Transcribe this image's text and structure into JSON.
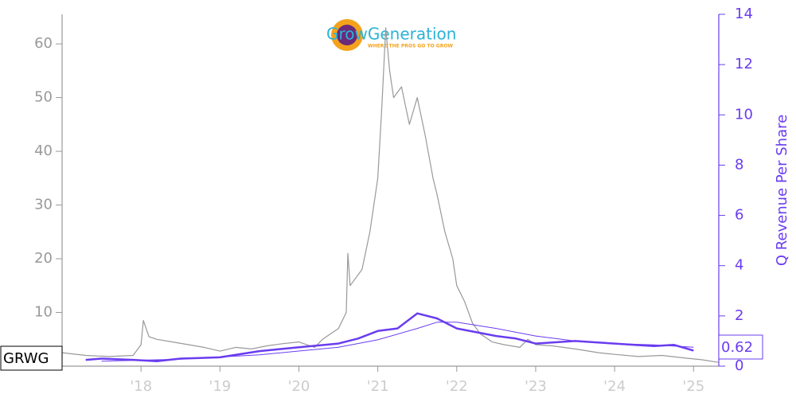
{
  "chart_data": {
    "type": "line",
    "ticker": "GRWG",
    "logo_text": "GrowGeneration",
    "logo_tagline": "WHERE THE PROS GO TO GROW",
    "y2_label": "Q Revenue Per Share",
    "xlim": [
      2017.0,
      2025.32
    ],
    "xticks": [
      {
        "value": 2018,
        "label": "'18"
      },
      {
        "value": 2019,
        "label": "'19"
      },
      {
        "value": 2020,
        "label": "'20"
      },
      {
        "value": 2021,
        "label": "'21"
      },
      {
        "value": 2022,
        "label": "'22"
      },
      {
        "value": 2023,
        "label": "'23"
      },
      {
        "value": 2024,
        "label": "'24"
      },
      {
        "value": 2025,
        "label": "'25"
      }
    ],
    "ylim": [
      0,
      65.5
    ],
    "yticks": [
      0,
      10,
      20,
      30,
      40,
      50,
      60
    ],
    "y2lim": [
      0,
      14
    ],
    "y2ticks": [
      0,
      2,
      4,
      6,
      8,
      10,
      12,
      14
    ],
    "series": [
      {
        "color": "#999999",
        "axis": "y",
        "x": [
          2017.0,
          2017.3,
          2017.6,
          2017.9,
          2018.0,
          2018.03,
          2018.1,
          2018.2,
          2018.4,
          2018.6,
          2018.8,
          2019.0,
          2019.2,
          2019.4,
          2019.6,
          2019.8,
          2020.0,
          2020.2,
          2020.3,
          2020.4,
          2020.5,
          2020.6,
          2020.62,
          2020.65,
          2020.8,
          2020.9,
          2021.0,
          2021.05,
          2021.1,
          2021.15,
          2021.2,
          2021.3,
          2021.4,
          2021.5,
          2021.6,
          2021.7,
          2021.75,
          2021.85,
          2021.95,
          2022.0,
          2022.1,
          2022.2,
          2022.3,
          2022.45,
          2022.6,
          2022.8,
          2022.9,
          2023.0,
          2023.2,
          2023.5,
          2023.8,
          2024.0,
          2024.3,
          2024.6,
          2024.9,
          2025.1,
          2025.32
        ],
        "values": [
          2.5,
          2.0,
          1.8,
          2.0,
          4,
          8.5,
          5.5,
          5,
          4.5,
          4,
          3.5,
          2.8,
          3.5,
          3.2,
          3.8,
          4.2,
          4.5,
          3.5,
          5,
          6,
          7,
          10,
          21,
          15,
          18,
          25,
          35,
          48,
          63,
          55,
          50,
          52,
          45,
          50,
          43,
          35,
          32,
          25,
          20,
          15,
          12,
          8,
          6,
          4.5,
          4,
          3.5,
          5,
          4,
          3.8,
          3.2,
          2.5,
          2.2,
          1.8,
          2.0,
          1.5,
          1.2,
          0.7
        ]
      },
      {
        "color": "#6a3cf0",
        "axis": "y2",
        "x": [
          2017.3,
          2017.5,
          2017.9,
          2018.2,
          2018.5,
          2019.0,
          2019.5,
          2020.0,
          2020.5,
          2020.75,
          2021.0,
          2021.25,
          2021.5,
          2021.75,
          2022.0,
          2022.25,
          2022.5,
          2022.75,
          2023.0,
          2023.25,
          2023.5,
          2023.75,
          2024.0,
          2024.25,
          2024.5,
          2024.75,
          2025.0
        ],
        "values": [
          0.25,
          0.3,
          0.25,
          0.2,
          0.3,
          0.35,
          0.6,
          0.75,
          0.9,
          1.1,
          1.4,
          1.5,
          2.1,
          1.9,
          1.5,
          1.35,
          1.2,
          1.1,
          0.9,
          0.95,
          1.0,
          0.95,
          0.9,
          0.85,
          0.8,
          0.85,
          0.62
        ]
      },
      {
        "color": "#6a3cf0",
        "axis": "y2",
        "x": [
          2017.5,
          2018.5,
          2019.5,
          2020.5,
          2021.0,
          2021.5,
          2021.75,
          2022.0,
          2022.5,
          2023.0,
          2023.5,
          2024.0,
          2024.5,
          2025.0
        ],
        "values": [
          0.2,
          0.28,
          0.45,
          0.75,
          1.05,
          1.5,
          1.75,
          1.75,
          1.5,
          1.2,
          1.0,
          0.9,
          0.85,
          0.75
        ]
      }
    ]
  }
}
